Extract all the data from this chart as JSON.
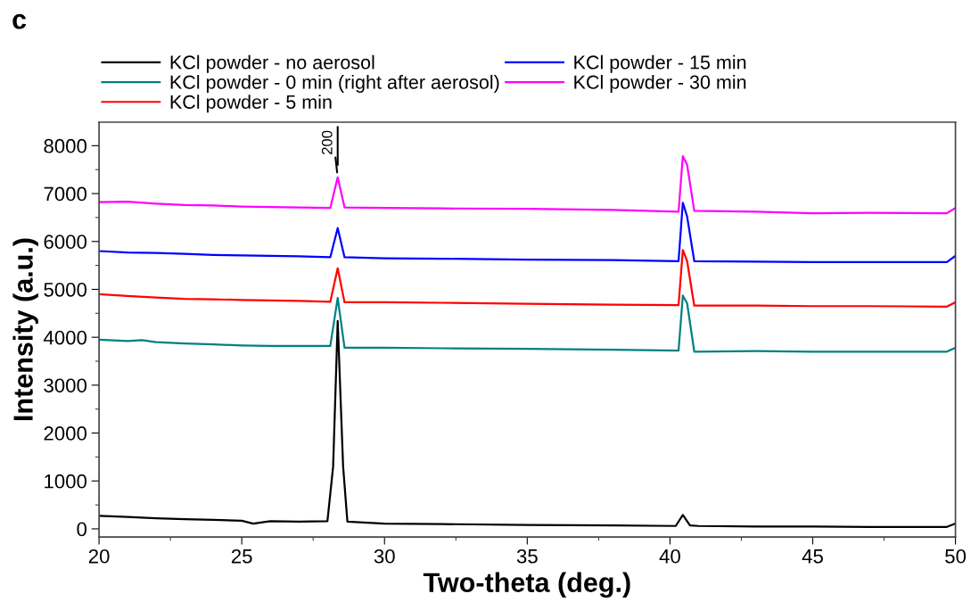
{
  "chart_data": {
    "type": "line",
    "xlabel": "Two-theta (deg.)",
    "ylabel": "Intensity (a.u.)",
    "xlim": [
      20,
      50
    ],
    "xticks": [
      20,
      25,
      30,
      35,
      40,
      45,
      50
    ],
    "ylim": [
      -170,
      8490
    ],
    "yticks": [
      0,
      1000,
      2000,
      3000,
      4000,
      5000,
      6000,
      7000,
      8000
    ],
    "grid": false,
    "legend": "top",
    "marker": "none",
    "line_style": "solid",
    "annotations": [
      "c",
      {
        "text": "200",
        "x": 28.36,
        "y": 7340
      }
    ],
    "series": [
      {
        "name": "KCl powder - no aerosol",
        "color": "#000000",
        "x": [
          20,
          21,
          22,
          23,
          24,
          25,
          25.4,
          26,
          27,
          28.0,
          28.2,
          28.36,
          28.55,
          28.7,
          30,
          32,
          35,
          38,
          40.2,
          40.45,
          40.7,
          41,
          43,
          45,
          47,
          49.7,
          50
        ],
        "values": [
          270,
          250,
          220,
          200,
          190,
          170,
          110,
          160,
          150,
          160,
          1300,
          4340,
          1300,
          150,
          110,
          100,
          80,
          70,
          60,
          290,
          70,
          60,
          50,
          50,
          40,
          40,
          110
        ]
      },
      {
        "name": "KCl powder - 0 min (right after aerosol)",
        "color": "#008080",
        "x": [
          20,
          21,
          21.5,
          22,
          23,
          24,
          25,
          26,
          27,
          28.1,
          28.36,
          28.6,
          30,
          32,
          35,
          38,
          40.3,
          40.45,
          40.6,
          40.85,
          43,
          45,
          47,
          49.7,
          50
        ],
        "values": [
          3950,
          3920,
          3940,
          3900,
          3870,
          3850,
          3830,
          3820,
          3820,
          3820,
          4820,
          3780,
          3780,
          3770,
          3760,
          3740,
          3720,
          4870,
          4710,
          3700,
          3710,
          3700,
          3700,
          3700,
          3780
        ]
      },
      {
        "name": "KCl powder - 5 min",
        "color": "#ff0000",
        "x": [
          20,
          21,
          22,
          23,
          24,
          25,
          26,
          27,
          28.1,
          28.36,
          28.6,
          30,
          32,
          35,
          38,
          40.3,
          40.45,
          40.6,
          40.85,
          43,
          45,
          47,
          49.7,
          50
        ],
        "values": [
          4900,
          4860,
          4830,
          4800,
          4790,
          4780,
          4770,
          4760,
          4740,
          5440,
          4730,
          4730,
          4720,
          4700,
          4680,
          4670,
          5820,
          5590,
          4660,
          4660,
          4650,
          4650,
          4640,
          4730
        ]
      },
      {
        "name": "KCl powder - 15 min",
        "color": "#0000ff",
        "x": [
          20,
          21,
          22,
          23,
          24,
          25,
          26,
          27,
          28.1,
          28.36,
          28.6,
          30,
          32,
          35,
          38,
          40.3,
          40.45,
          40.6,
          40.85,
          43,
          45,
          47,
          49.7,
          50
        ],
        "values": [
          5800,
          5770,
          5760,
          5740,
          5720,
          5710,
          5700,
          5690,
          5670,
          6280,
          5670,
          5650,
          5640,
          5620,
          5610,
          5590,
          6810,
          6520,
          5590,
          5580,
          5570,
          5570,
          5570,
          5700
        ]
      },
      {
        "name": "KCl powder - 30 min",
        "color": "#ff00ff",
        "x": [
          20,
          21,
          22,
          23,
          24,
          25,
          26,
          27,
          28.1,
          28.36,
          28.6,
          30,
          32,
          35,
          38,
          40.3,
          40.45,
          40.6,
          40.85,
          43,
          45,
          47,
          49.7,
          50
        ],
        "values": [
          6820,
          6830,
          6790,
          6760,
          6750,
          6730,
          6720,
          6710,
          6700,
          7340,
          6710,
          6700,
          6690,
          6680,
          6660,
          6620,
          7780,
          7600,
          6640,
          6620,
          6590,
          6600,
          6590,
          6700
        ]
      }
    ]
  }
}
